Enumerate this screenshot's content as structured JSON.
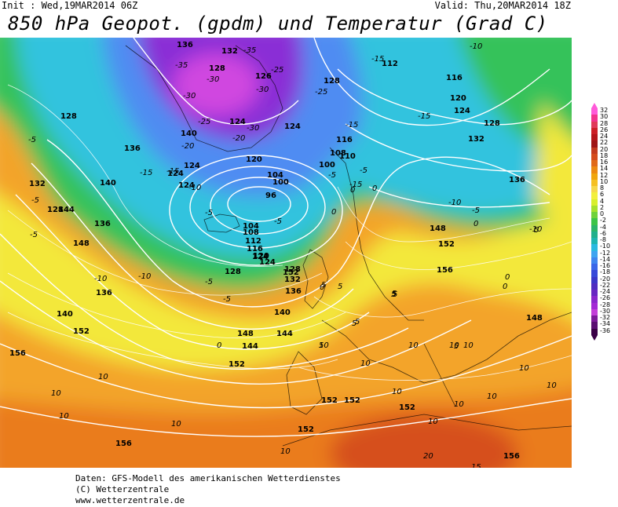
{
  "header": {
    "init": "Init : Wed,19MAR2014 06Z",
    "valid": "Valid: Thu,20MAR2014 18Z",
    "title": "850 hPa Geopot. (gpdm) und Temperatur (Grad C)"
  },
  "legend": {
    "values": [
      "32",
      "30",
      "28",
      "26",
      "24",
      "22",
      "20",
      "18",
      "16",
      "14",
      "12",
      "10",
      "8",
      "6",
      "4",
      "2",
      "0",
      "-2",
      "-4",
      "-6",
      "-8",
      "-10",
      "-12",
      "-14",
      "-16",
      "-18",
      "-20",
      "-22",
      "-24",
      "-26",
      "-28",
      "-30",
      "-32",
      "-34",
      "-36"
    ],
    "colors": [
      "#ff5ad9",
      "#f2338d",
      "#e03a5a",
      "#cc1f27",
      "#b5161b",
      "#9e1616",
      "#c23a1e",
      "#d44b1c",
      "#e06a1a",
      "#ec8a12",
      "#f0a60e",
      "#f5c022",
      "#f6d84a",
      "#f2ef3c",
      "#d8ef2c",
      "#a6e12c",
      "#6fd23a",
      "#3cc448",
      "#2cb56a",
      "#22b08c",
      "#1fb5b0",
      "#2bb9e0",
      "#3fa4f0",
      "#3f86ef",
      "#3a67e8",
      "#3849d9",
      "#3b37c8",
      "#4f2dc0",
      "#6827c2",
      "#8a27cc",
      "#a329d5",
      "#c33fd9",
      "#7d1b9a",
      "#5a0e72",
      "#3a0047"
    ]
  },
  "map": {
    "colors": {
      "ocean_deep_blue": "#4f8cf2",
      "cyan": "#32c3de",
      "green": "#36c25a",
      "yellow_green": "#b6e12c",
      "yellow": "#f3e83a",
      "orange": "#f6a021",
      "dark_orange": "#ea7c1a",
      "red_orange": "#d6501b",
      "purple": "#8a2fd6",
      "magenta": "#d047e0",
      "contour": "#ffffff"
    },
    "geopotential_labels": [
      {
        "text": "136"
      },
      {
        "text": "132"
      },
      {
        "text": "128"
      },
      {
        "text": "126"
      },
      {
        "text": "128"
      },
      {
        "text": "124"
      },
      {
        "text": "124"
      },
      {
        "text": "120"
      },
      {
        "text": "124"
      },
      {
        "text": "128"
      },
      {
        "text": "112"
      },
      {
        "text": "116"
      },
      {
        "text": "120"
      },
      {
        "text": "124"
      },
      {
        "text": "128"
      },
      {
        "text": "132"
      },
      {
        "text": "136"
      },
      {
        "text": "116"
      },
      {
        "text": "110"
      },
      {
        "text": "108"
      },
      {
        "text": "104"
      },
      {
        "text": "100"
      },
      {
        "text": "96"
      },
      {
        "text": "104"
      },
      {
        "text": "108"
      },
      {
        "text": "112"
      },
      {
        "text": "116"
      },
      {
        "text": "120"
      },
      {
        "text": "124"
      },
      {
        "text": "128"
      },
      {
        "text": "132"
      },
      {
        "text": "136"
      },
      {
        "text": "140"
      },
      {
        "text": "144"
      },
      {
        "text": "148"
      },
      {
        "text": "152"
      },
      {
        "text": "156"
      },
      {
        "text": "128"
      },
      {
        "text": "136"
      },
      {
        "text": "132"
      },
      {
        "text": "140"
      },
      {
        "text": "144"
      },
      {
        "text": "148"
      },
      {
        "text": "152"
      },
      {
        "text": "156"
      },
      {
        "text": "140"
      },
      {
        "text": "136"
      },
      {
        "text": "152"
      },
      {
        "text": "144"
      },
      {
        "text": "148"
      },
      {
        "text": "156"
      },
      {
        "text": "148"
      },
      {
        "text": "152"
      },
      {
        "text": "152"
      },
      {
        "text": "152"
      },
      {
        "text": "152"
      },
      {
        "text": "152"
      },
      {
        "text": "156"
      },
      {
        "text": "100"
      },
      {
        "text": "124"
      },
      {
        "text": "124"
      },
      {
        "text": "124"
      },
      {
        "text": "128"
      },
      {
        "text": "136"
      },
      {
        "text": "140"
      }
    ],
    "temperature_labels": [
      {
        "text": "-35"
      },
      {
        "text": "-35"
      },
      {
        "text": "-25"
      },
      {
        "text": "-30"
      },
      {
        "text": "-30"
      },
      {
        "text": "-30"
      },
      {
        "text": "-25"
      },
      {
        "text": "-30"
      },
      {
        "text": "-20"
      },
      {
        "text": "-25"
      },
      {
        "text": "-20"
      },
      {
        "text": "-15"
      },
      {
        "text": "-15"
      },
      {
        "text": "-15"
      },
      {
        "text": "-10"
      },
      {
        "text": "-15"
      },
      {
        "text": "-15"
      },
      {
        "text": "-10"
      },
      {
        "text": "-5"
      },
      {
        "text": "-5"
      },
      {
        "text": "-5"
      },
      {
        "text": "-10"
      },
      {
        "text": "-5"
      },
      {
        "text": "-5"
      },
      {
        "text": "-5"
      },
      {
        "text": "-5"
      },
      {
        "text": "-10"
      },
      {
        "text": "-5"
      },
      {
        "text": "-10"
      },
      {
        "text": "-5"
      },
      {
        "text": "-15"
      },
      {
        "text": "0"
      },
      {
        "text": "0"
      },
      {
        "text": "0"
      },
      {
        "text": "0"
      },
      {
        "text": "0"
      },
      {
        "text": "0"
      },
      {
        "text": "0"
      },
      {
        "text": "5"
      },
      {
        "text": "5"
      },
      {
        "text": "5"
      },
      {
        "text": "5"
      },
      {
        "text": "5"
      },
      {
        "text": "5"
      },
      {
        "text": "5"
      },
      {
        "text": "5"
      },
      {
        "text": "10"
      },
      {
        "text": "10"
      },
      {
        "text": "10"
      },
      {
        "text": "10"
      },
      {
        "text": "10"
      },
      {
        "text": "10"
      },
      {
        "text": "10"
      },
      {
        "text": "10"
      },
      {
        "text": "10"
      },
      {
        "text": "10"
      },
      {
        "text": "10"
      },
      {
        "text": "10"
      },
      {
        "text": "10"
      },
      {
        "text": "10"
      },
      {
        "text": "10"
      },
      {
        "text": "10"
      },
      {
        "text": "15"
      },
      {
        "text": "20"
      },
      {
        "text": "-10"
      },
      {
        "text": "-5"
      },
      {
        "text": "5"
      },
      {
        "text": "5"
      },
      {
        "text": "0"
      }
    ]
  },
  "footer": {
    "line1": "Daten: GFS-Modell des amerikanischen Wetterdienstes",
    "line2": "(C) Wetterzentrale",
    "line3": "www.wetterzentrale.de"
  }
}
